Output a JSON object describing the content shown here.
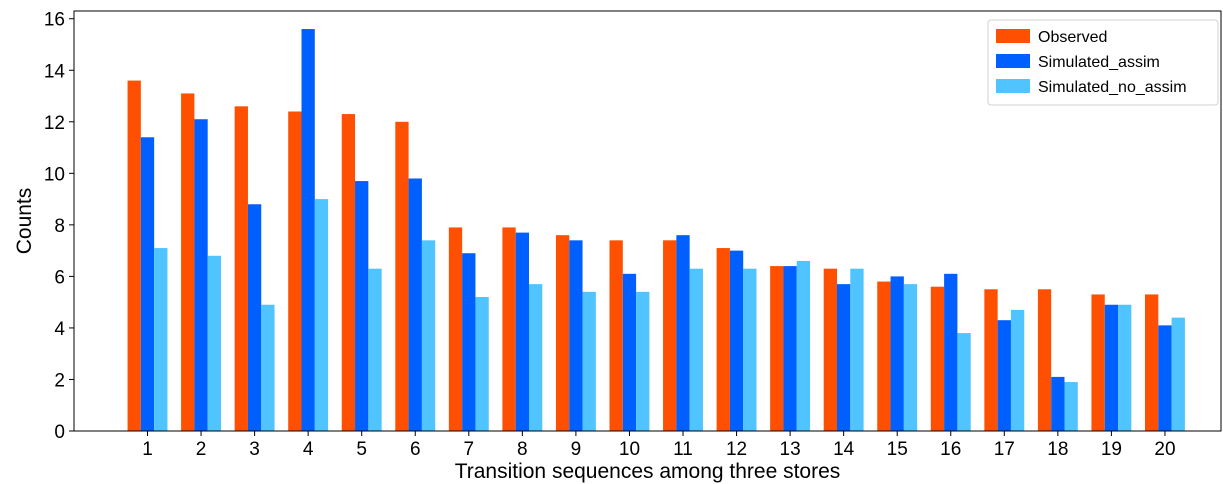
{
  "chart_data": {
    "type": "bar",
    "xlabel": "Transition sequences among three stores",
    "ylabel": "Counts",
    "ylim": [
      0,
      16.3
    ],
    "yticks": [
      0,
      2,
      4,
      6,
      8,
      10,
      12,
      14,
      16
    ],
    "categories": [
      "1",
      "2",
      "3",
      "4",
      "5",
      "6",
      "7",
      "8",
      "9",
      "10",
      "11",
      "12",
      "13",
      "14",
      "15",
      "16",
      "17",
      "18",
      "19",
      "20"
    ],
    "legend_position": "top-right",
    "grid": false,
    "series": [
      {
        "name": "Observed",
        "color": "#ff4f00",
        "values": [
          13.6,
          13.1,
          12.6,
          12.4,
          12.3,
          12.0,
          7.9,
          7.9,
          7.6,
          7.4,
          7.4,
          7.1,
          6.4,
          6.3,
          5.8,
          5.6,
          5.5,
          5.5,
          5.3,
          5.3
        ]
      },
      {
        "name": "Simulated_assim",
        "color": "#0060ff",
        "values": [
          11.4,
          12.1,
          8.8,
          15.6,
          9.7,
          9.8,
          6.9,
          7.7,
          7.4,
          6.1,
          7.6,
          7.0,
          6.4,
          5.7,
          6.0,
          6.1,
          4.3,
          2.1,
          4.9,
          4.1
        ]
      },
      {
        "name": "Simulated_no_assim",
        "color": "#50c4ff",
        "values": [
          7.1,
          6.8,
          4.9,
          9.0,
          6.3,
          7.4,
          5.2,
          5.7,
          5.4,
          5.4,
          6.3,
          6.3,
          6.6,
          6.3,
          5.7,
          3.8,
          4.7,
          1.9,
          4.9,
          4.4
        ]
      }
    ]
  }
}
